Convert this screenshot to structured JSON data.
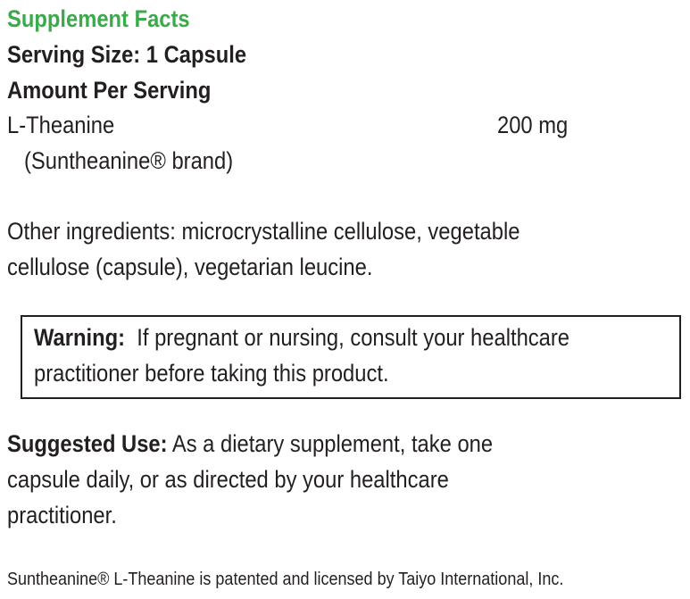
{
  "title": "Supplement Facts",
  "serving_size": "Serving Size: 1 Capsule",
  "amount_header": "Amount Per Serving",
  "ingredient": {
    "name": "L-Theanine",
    "amount": "200 mg",
    "note": "(Suntheanine® brand)"
  },
  "other_ingredients": [
    "Other ingredients: microcrystalline cellulose, vegetable",
    "cellulose (capsule), vegetarian leucine."
  ],
  "warning": {
    "label": "Warning:",
    "lines": [
      "If pregnant or nursing, consult your healthcare",
      "practitioner before taking this product."
    ]
  },
  "suggested_use": {
    "label": "Suggested Use:",
    "lines": [
      "As a dietary supplement, take one",
      "capsule daily, or as directed by your healthcare",
      "practitioner."
    ]
  },
  "footer": "Suntheanine® L-Theanine is patented and licensed by Taiyo International, Inc.",
  "colors": {
    "title": "#3aaa4a",
    "text": "#231f20"
  }
}
